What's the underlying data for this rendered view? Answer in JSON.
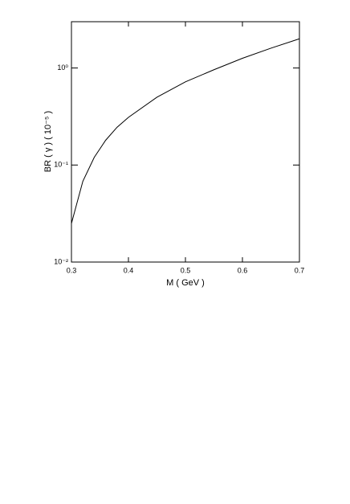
{
  "chart_data": {
    "type": "line",
    "log_y": true,
    "x_label": "M ( GeV )",
    "y_label": "BR ( γ )  ( 10⁻⁵ )",
    "x": [
      0.3,
      0.32,
      0.34,
      0.36,
      0.38,
      0.4,
      0.45,
      0.5,
      0.55,
      0.6,
      0.65,
      0.7
    ],
    "series": [
      {
        "color": "#000000",
        "values": [
          0.025,
          0.068,
          0.12,
          0.18,
          0.245,
          0.31,
          0.5,
          0.72,
          0.96,
          1.26,
          1.6,
          2.0
        ]
      }
    ],
    "xlim": [
      0.3,
      0.7
    ],
    "xticks": [
      0.3,
      0.4,
      0.5,
      0.6,
      0.7
    ],
    "ylim": [
      0.01,
      3
    ],
    "yticks": [
      {
        "value": 0.01,
        "label": "10⁻²"
      },
      {
        "value": 0.1,
        "label": "10⁻¹"
      },
      {
        "value": 1,
        "label": "10⁰"
      }
    ]
  }
}
